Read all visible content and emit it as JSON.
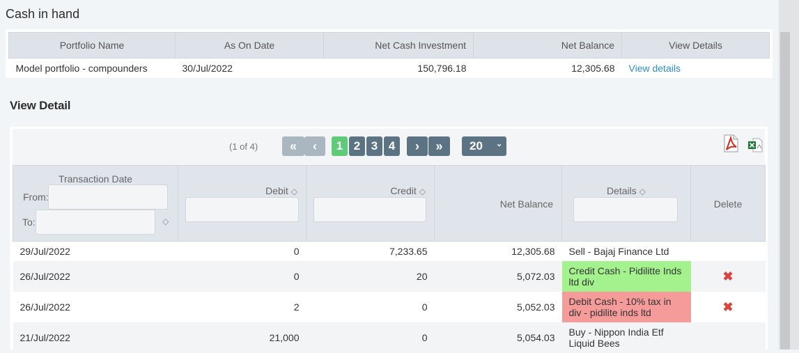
{
  "page": {
    "title": "Cash in hand",
    "detail_title": "View Detail"
  },
  "summary": {
    "headers": [
      "Portfolio Name",
      "As On Date",
      "Net Cash Investment",
      "Net Balance",
      "View Details"
    ],
    "row": {
      "portfolio_name": "Model portfolio - compounders",
      "as_on_date": "30/Jul/2022",
      "net_cash_investment": "150,796.18",
      "net_balance": "12,305.68",
      "view_details": "View details"
    }
  },
  "paginator": {
    "count_text": "(1 of 4)",
    "first": "«",
    "prev": "‹",
    "next": "›",
    "last": "»",
    "pages": [
      "1",
      "2",
      "3",
      "4"
    ],
    "current_page": "1",
    "rows_per_page": "20",
    "chevron": "⌄"
  },
  "export": {
    "pdf_icon": "pdf-icon",
    "excel_icon": "excel-icon"
  },
  "grid": {
    "headers": {
      "transaction_date": "Transaction Date",
      "from": "From:",
      "to": "To:",
      "debit": "Debit",
      "credit": "Credit",
      "net_balance": "Net Balance",
      "details": "Details",
      "delete": "Delete"
    },
    "sort_icon": "◇",
    "delete_icon": "✖",
    "rows": [
      {
        "date": "29/Jul/2022",
        "debit": "0",
        "credit": "7,233.65",
        "net_balance": "12,305.68",
        "details": "Sell - Bajaj Finance Ltd",
        "highlight": "none"
      },
      {
        "date": "26/Jul/2022",
        "debit": "0",
        "credit": "20",
        "net_balance": "5,072.03",
        "details": "Credit Cash - Pidilitte Inds ltd div",
        "highlight": "green"
      },
      {
        "date": "26/Jul/2022",
        "debit": "2",
        "credit": "0",
        "net_balance": "5,052.03",
        "details": "Debit Cash - 10% tax in div - pidilite inds ltd",
        "highlight": "red"
      },
      {
        "date": "21/Jul/2022",
        "debit": "21,000",
        "credit": "0",
        "net_balance": "5,054.03",
        "details": "Buy - Nippon India Etf Liquid Bees",
        "highlight": "none"
      }
    ]
  },
  "colors": {
    "accent_link": "#2a8fcf",
    "page_active": "#5ecb78",
    "page_button": "#5c7383",
    "credit_highlight": "#a3f28d",
    "debit_highlight": "#f59b99",
    "delete_icon": "#d9453f"
  }
}
